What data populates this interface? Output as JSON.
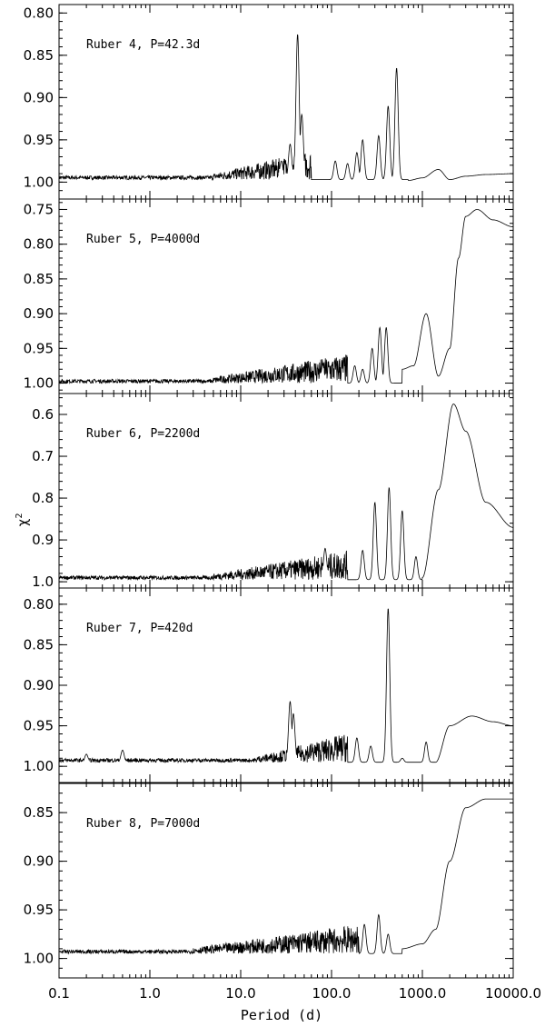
{
  "chart_data": {
    "type": "line",
    "xscale": "log",
    "xlim": [
      0.1,
      10000.0
    ],
    "xlabel": "Period (d)",
    "ylabel": "χ",
    "ylabel_sup": "2",
    "y_inverted": true,
    "x_tick_labels": [
      "0.1",
      "1.0",
      "10.0",
      "100.0",
      "1000.0",
      "10000.0"
    ],
    "x_tick_values": [
      0.1,
      1,
      10,
      100,
      1000,
      10000
    ],
    "panels": [
      {
        "annotation": "Ruber 4, P=42.3d",
        "ylim_top": 0.79,
        "ylim_bottom": 1.02,
        "ticks": [
          0.8,
          0.85,
          0.9,
          0.95,
          1.0
        ],
        "tick_labels": [
          "0.80",
          "0.85",
          "0.90",
          "0.95",
          "1.00"
        ],
        "minor": 0.01,
        "baseline": 0.997,
        "peaks": [
          [
            42.3,
            0.825
          ],
          [
            47,
            0.92
          ],
          [
            35,
            0.955
          ],
          [
            28,
            0.975
          ],
          [
            110,
            0.975
          ],
          [
            150,
            0.978
          ],
          [
            190,
            0.965
          ],
          [
            220,
            0.95
          ],
          [
            330,
            0.945
          ],
          [
            420,
            0.91
          ],
          [
            520,
            0.865
          ]
        ],
        "smooth": [
          [
            700,
            0.998
          ],
          [
            1000,
            0.995
          ],
          [
            1500,
            0.985
          ],
          [
            2000,
            0.997
          ],
          [
            3000,
            0.993
          ],
          [
            5000,
            0.991
          ],
          [
            10000,
            0.99
          ]
        ],
        "noise_span": [
          5,
          60
        ]
      },
      {
        "annotation": "Ruber 5, P=4000d",
        "ylim_top": 0.735,
        "ylim_bottom": 1.015,
        "ticks": [
          0.75,
          0.8,
          0.85,
          0.9,
          0.95,
          1.0
        ],
        "tick_labels": [
          "0.75",
          "0.80",
          "0.85",
          "0.90",
          "0.95",
          "1.00"
        ],
        "minor": 0.01,
        "baseline": 1.0,
        "peaks": [
          [
            80,
            0.975
          ],
          [
            180,
            0.975
          ],
          [
            220,
            0.98
          ],
          [
            280,
            0.95
          ],
          [
            340,
            0.92
          ],
          [
            400,
            0.92
          ],
          [
            1100,
            0.9
          ]
        ],
        "smooth": [
          [
            600,
            0.98
          ],
          [
            800,
            0.975
          ],
          [
            1100,
            0.9
          ],
          [
            1500,
            0.99
          ],
          [
            2000,
            0.95
          ],
          [
            2500,
            0.82
          ],
          [
            3000,
            0.76
          ],
          [
            4000,
            0.75
          ],
          [
            6000,
            0.765
          ],
          [
            10000,
            0.775
          ]
        ],
        "noise_span": [
          5,
          150
        ]
      },
      {
        "annotation": "Ruber 6, P=2200d",
        "ylim_top": 0.55,
        "ylim_bottom": 1.015,
        "ticks": [
          0.6,
          0.7,
          0.8,
          0.9,
          1.0
        ],
        "tick_labels": [
          "0.6",
          "0.7",
          "0.8",
          "0.9",
          "1.0"
        ],
        "minor": 0.02,
        "baseline": 0.995,
        "peaks": [
          [
            85,
            0.92
          ],
          [
            220,
            0.925
          ],
          [
            300,
            0.81
          ],
          [
            430,
            0.775
          ],
          [
            600,
            0.83
          ],
          [
            850,
            0.94
          ]
        ],
        "smooth": [
          [
            1000,
            0.99
          ],
          [
            1500,
            0.78
          ],
          [
            2200,
            0.575
          ],
          [
            3000,
            0.64
          ],
          [
            5000,
            0.81
          ],
          [
            10000,
            0.87
          ]
        ],
        "noise_span": [
          5,
          150
        ]
      },
      {
        "annotation": "Ruber 7, P=420d",
        "ylim_top": 0.78,
        "ylim_bottom": 1.02,
        "ticks": [
          0.8,
          0.85,
          0.9,
          0.95,
          1.0
        ],
        "tick_labels": [
          "0.80",
          "0.85",
          "0.90",
          "0.95",
          "1.00"
        ],
        "minor": 0.01,
        "baseline": 0.995,
        "peaks": [
          [
            0.2,
            0.985
          ],
          [
            0.5,
            0.98
          ],
          [
            35,
            0.92
          ],
          [
            38,
            0.935
          ],
          [
            190,
            0.965
          ],
          [
            270,
            0.975
          ],
          [
            420,
            0.805
          ],
          [
            600,
            0.99
          ],
          [
            1100,
            0.97
          ]
        ],
        "smooth": [
          [
            1400,
            0.995
          ],
          [
            2000,
            0.95
          ],
          [
            3500,
            0.938
          ],
          [
            6000,
            0.945
          ],
          [
            10000,
            0.95
          ]
        ],
        "noise_span": [
          15,
          150
        ]
      },
      {
        "annotation": "Ruber 8, P=7000d",
        "ylim_top": 0.82,
        "ylim_bottom": 1.02,
        "ticks": [
          0.85,
          0.9,
          0.95,
          1.0
        ],
        "tick_labels": [
          "0.85",
          "0.90",
          "0.95",
          "1.00"
        ],
        "minor": 0.01,
        "baseline": 0.995,
        "peaks": [
          [
            230,
            0.965
          ],
          [
            330,
            0.955
          ],
          [
            420,
            0.975
          ]
        ],
        "smooth": [
          [
            600,
            0.99
          ],
          [
            1000,
            0.985
          ],
          [
            1400,
            0.97
          ],
          [
            2000,
            0.9
          ],
          [
            3000,
            0.845
          ],
          [
            5000,
            0.836
          ],
          [
            10000,
            0.836
          ]
        ],
        "noise_span": [
          3,
          200
        ]
      }
    ]
  }
}
